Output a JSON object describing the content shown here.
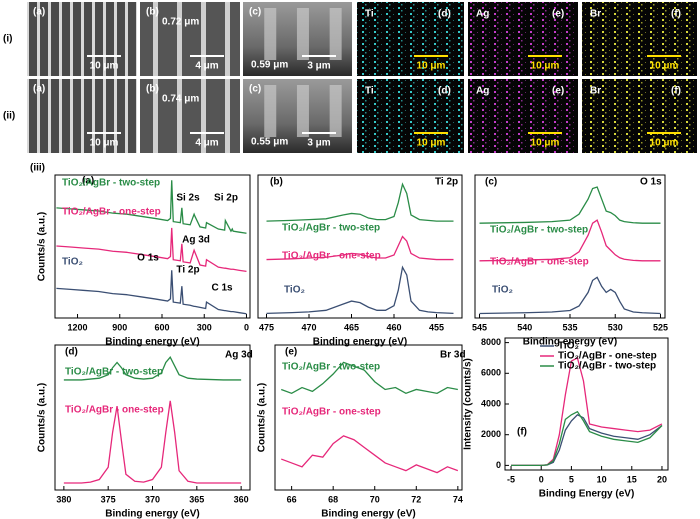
{
  "images": {
    "rows": [
      {
        "label": "(i)",
        "panels": [
          {
            "label": "(a)",
            "scale_bar": "10 μm"
          },
          {
            "label": "(b)",
            "thickness": "0.72 μm",
            "scale_bar": "4 μm"
          },
          {
            "label": "(c)",
            "thickness": "0.59 μm",
            "scale_bar": "3 μm"
          },
          {
            "element": "Ti",
            "label": "(d)",
            "scale_bar": "10 μm",
            "color": "#35c8c8"
          },
          {
            "element": "Ag",
            "label": "(e)",
            "scale_bar": "10 μm",
            "color": "#c23cc8"
          },
          {
            "element": "Br",
            "label": "(f)",
            "scale_bar": "10 μm",
            "color": "#d8d83a"
          }
        ]
      },
      {
        "label": "(ii)",
        "panels": [
          {
            "label": "(a)",
            "scale_bar": "10 μm"
          },
          {
            "label": "(b)",
            "thickness": "0.74 μm",
            "scale_bar": "4 μm"
          },
          {
            "label": "(c)",
            "thickness": "0.55 μm",
            "scale_bar": "3 μm"
          },
          {
            "element": "Ti",
            "label": "(d)",
            "scale_bar": "10 μm",
            "color": "#35c8c8"
          },
          {
            "element": "Ag",
            "label": "(e)",
            "scale_bar": "10 μm",
            "color": "#c23cc8"
          },
          {
            "element": "Br",
            "label": "(f)",
            "scale_bar": "10 μm",
            "color": "#d8d83a"
          }
        ]
      }
    ]
  },
  "section_label": "(iii)",
  "chart_data": [
    {
      "type": "line",
      "panel_label": "(a)",
      "x_label": "Binding energy (eV)",
      "y_label": "Counts/s (a.u.)",
      "x": [
        1350,
        1250,
        1150,
        1050,
        950,
        850,
        750,
        650,
        560,
        540,
        531,
        520,
        470,
        459,
        450,
        400,
        372,
        366,
        330,
        290,
        284,
        200,
        155,
        150,
        110,
        101,
        95,
        50,
        0
      ],
      "xlim": [
        1360,
        -25
      ],
      "xticks": [
        1200,
        900,
        600,
        300,
        0
      ],
      "ylim": [
        0,
        135
      ],
      "series": [
        {
          "name": "TiO₂/AgBr - two-step",
          "color": "#2a8c47",
          "values": [
            104,
            103,
            102,
            101,
            99,
            98,
            96,
            94,
            92,
            94,
            130,
            91,
            90,
            104,
            89,
            88,
            98,
            96,
            86,
            85,
            90,
            84,
            83,
            92,
            82,
            84,
            82,
            81,
            80
          ]
        },
        {
          "name": "TiO₂/AgBr - one-step",
          "color": "#e6287a",
          "values": [
            68,
            67,
            66,
            65,
            63,
            62,
            60,
            58,
            56,
            58,
            85,
            55,
            54,
            70,
            53,
            52,
            64,
            62,
            50,
            49,
            55,
            48,
            47,
            47,
            46,
            46,
            46,
            45,
            44
          ]
        },
        {
          "name": "TiO₂",
          "color": "#3b4f73",
          "values": [
            28,
            27,
            26,
            25,
            23,
            22,
            20,
            18,
            16,
            18,
            45,
            15,
            14,
            30,
            13,
            12,
            11,
            11,
            10,
            9,
            15,
            8,
            7,
            7,
            6,
            6,
            6,
            5,
            4
          ]
        }
      ],
      "annotations": [
        "Si 2s",
        "Si 2p",
        "Ag 3d",
        "O 1s",
        "Ti 2p",
        "C 1s"
      ]
    },
    {
      "type": "line",
      "panel_label": "(b)",
      "title": "Ti 2p",
      "x_label": "Binding energy (eV)",
      "x": [
        475,
        472,
        470,
        468,
        466,
        465,
        464,
        463,
        462,
        461,
        460,
        459.5,
        459,
        458.5,
        458,
        457,
        456,
        455,
        453
      ],
      "xlim": [
        476,
        452
      ],
      "xticks": [
        475,
        470,
        465,
        460,
        455
      ],
      "ylim": [
        -3,
        90
      ],
      "series": [
        {
          "name": "TiO₂/AgBr - two-step",
          "color": "#2a8c47",
          "values": [
            60,
            60.5,
            61,
            61.5,
            64,
            65,
            64.5,
            62,
            61,
            61,
            63,
            72,
            84,
            78,
            64,
            61,
            60.5,
            60,
            60
          ]
        },
        {
          "name": "TiO₂/AgBr - one-step",
          "color": "#e6287a",
          "values": [
            35,
            35.5,
            36,
            36.5,
            38,
            39,
            38.5,
            37,
            36,
            36,
            38,
            44,
            50,
            47,
            39,
            36,
            35.5,
            35,
            35
          ]
        },
        {
          "name": "TiO₂",
          "color": "#3b4f73",
          "values": [
            0,
            0.5,
            1,
            2,
            6,
            8,
            7,
            4,
            2,
            2,
            5,
            15,
            30,
            25,
            8,
            2,
            1,
            0.5,
            0
          ]
        }
      ]
    },
    {
      "type": "line",
      "panel_label": "(c)",
      "title": "O 1s",
      "x_label": "Binding energy (eV)",
      "x": [
        545,
        540,
        537,
        535,
        534,
        533,
        532.5,
        532,
        531.5,
        531,
        530.5,
        530,
        529.5,
        529,
        528,
        527,
        525
      ],
      "xlim": [
        545.5,
        524.5
      ],
      "xticks": [
        545,
        540,
        535,
        530,
        525
      ],
      "ylim": [
        -3,
        92
      ],
      "series": [
        {
          "name": "TiO₂/AgBr - two-step",
          "color": "#2a8c47",
          "values": [
            60,
            60.5,
            61,
            62,
            66,
            76,
            83,
            84,
            76,
            68,
            67,
            65,
            62,
            61,
            60.3,
            60,
            60
          ]
        },
        {
          "name": "TiO₂/AgBr - one-step",
          "color": "#e6287a",
          "values": [
            35,
            35.5,
            36,
            37,
            41,
            52,
            60,
            62,
            54,
            45,
            42,
            39,
            37,
            36,
            35.3,
            35,
            35
          ]
        },
        {
          "name": "TiO₂",
          "color": "#3b4f73",
          "values": [
            0,
            0.5,
            1,
            2,
            5,
            14,
            22,
            24,
            18,
            14,
            16,
            14,
            8,
            3,
            1,
            0.5,
            0
          ]
        }
      ]
    },
    {
      "type": "line",
      "panel_label": "(d)",
      "title": "Ag 3d",
      "x_label": "Binding energy (eV)",
      "y_label": "Counts/s (a.u.)",
      "x": [
        380,
        378,
        377,
        376,
        375,
        374.5,
        374,
        373.5,
        373,
        372,
        371,
        370,
        369,
        368.5,
        368,
        367.5,
        367,
        366,
        365,
        362,
        360
      ],
      "xlim": [
        381,
        359
      ],
      "xticks": [
        380,
        375,
        370,
        365,
        360
      ],
      "ylim": [
        -3,
        80
      ],
      "series": [
        {
          "name": "TiO₂/AgBr - two-step",
          "color": "#2a8c47",
          "values": [
            60,
            60,
            60.5,
            61,
            63,
            67,
            70,
            67,
            63,
            61,
            60.5,
            61,
            64,
            70,
            73,
            68,
            63,
            61,
            60.5,
            60,
            60
          ]
        },
        {
          "name": "TiO₂/AgBr - one-step",
          "color": "#e6287a",
          "values": [
            1,
            1,
            1.5,
            3,
            10,
            30,
            45,
            25,
            6,
            2,
            1.5,
            3,
            10,
            30,
            48,
            30,
            8,
            2,
            1,
            1,
            1
          ]
        }
      ]
    },
    {
      "type": "line",
      "panel_label": "(e)",
      "title": "Br 3d",
      "x_label": "Binding energy (eV)",
      "y_label": "Counts/s (a.u.)",
      "x": [
        65.5,
        66,
        66.5,
        67,
        67.5,
        68,
        68.5,
        69,
        69.5,
        70,
        70.5,
        71,
        71.5,
        72,
        72.5,
        73,
        73.5,
        74
      ],
      "xlim": [
        65.2,
        74.2
      ],
      "xticks": [
        66,
        68,
        70,
        72,
        74
      ],
      "ylim": [
        10,
        85
      ],
      "series": [
        {
          "name": "TiO₂/AgBr - two-step",
          "color": "#2a8c47",
          "values": [
            62,
            60,
            63,
            61,
            65,
            70,
            76,
            74,
            72,
            66,
            62,
            63,
            60,
            62,
            61,
            60,
            63,
            62
          ]
        },
        {
          "name": "TiO₂/AgBr - one-step",
          "color": "#e6287a",
          "values": [
            26,
            24,
            22,
            28,
            27,
            34,
            38,
            36,
            32,
            28,
            24,
            22,
            20,
            23,
            21,
            19,
            22,
            20
          ]
        }
      ]
    },
    {
      "type": "line",
      "panel_label": "(f)",
      "x_label": "Binding Energy (eV)",
      "y_label": "Intensity (counts/s)",
      "x": [
        -5,
        -2,
        0,
        1,
        2,
        3,
        4,
        5,
        6,
        7,
        8,
        10,
        12,
        14,
        16,
        18,
        20
      ],
      "xlim": [
        -6,
        21
      ],
      "xticks": [
        -5,
        0,
        5,
        10,
        15,
        20
      ],
      "ylim": [
        -300,
        8300
      ],
      "yticks": [
        0,
        2000,
        4000,
        6000,
        8000
      ],
      "legend": "upper right",
      "series": [
        {
          "name": "TiO₂",
          "color": "#3b4f73",
          "values": [
            0,
            0,
            0,
            30,
            200,
            1000,
            2300,
            2900,
            3300,
            3100,
            2400,
            2100,
            1900,
            1800,
            1700,
            2000,
            2600
          ]
        },
        {
          "name": "TiO₂/AgBr - one-step",
          "color": "#e6287a",
          "values": [
            0,
            0,
            0,
            40,
            400,
            2000,
            4600,
            6800,
            7000,
            5500,
            2700,
            2500,
            2400,
            2300,
            2200,
            2300,
            2700
          ]
        },
        {
          "name": "TiO₂/AgBr - two-step",
          "color": "#2a8c47",
          "values": [
            0,
            0,
            0,
            35,
            300,
            1400,
            3000,
            3300,
            3500,
            2900,
            2200,
            1900,
            1700,
            1600,
            1500,
            1800,
            2600
          ]
        }
      ]
    }
  ]
}
